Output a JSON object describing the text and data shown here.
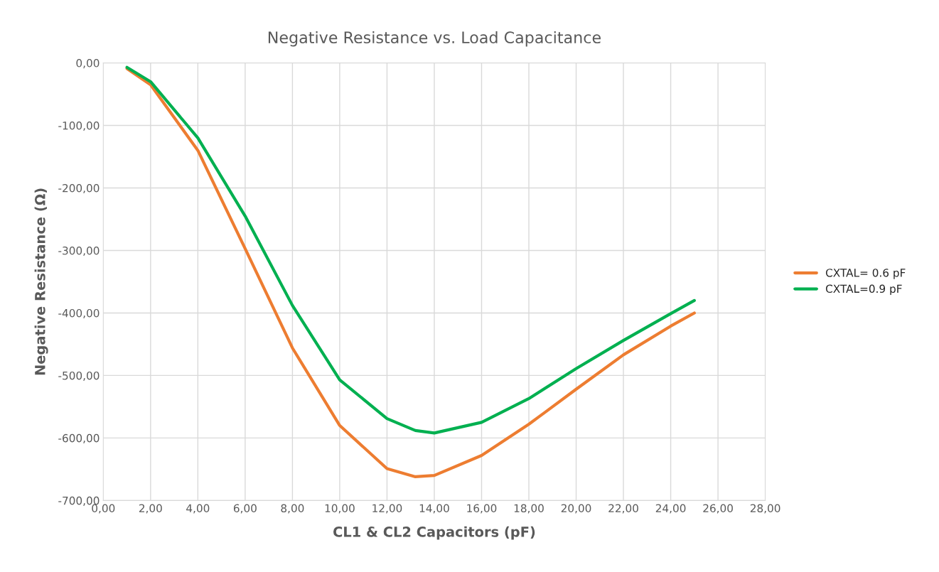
{
  "chart_data": {
    "type": "line",
    "title": "Negative Resistance vs. Load Capacitance",
    "xlabel": "CL1 & CL2 Capacitors (pF)",
    "ylabel": "Negative Resistance (Ω)",
    "x": [
      1,
      2,
      4,
      6,
      8,
      10,
      12,
      13.2,
      14,
      16,
      18,
      20,
      22,
      24,
      25
    ],
    "series": [
      {
        "name": "CXTAL= 0.6 pF",
        "color": "#ed7d31",
        "values": [
          -9,
          -35,
          -140,
          -297,
          -456,
          -580,
          -649,
          -662,
          -660,
          -628,
          -578,
          -522,
          -467,
          -421,
          -400
        ]
      },
      {
        "name": "CXTAL=0.9 pF",
        "color": "#00b050",
        "values": [
          -7,
          -30,
          -120,
          -245,
          -388,
          -507,
          -569,
          -588,
          -592,
          -575,
          -537,
          -489,
          -444,
          -401,
          -380
        ]
      }
    ],
    "xlim": [
      0,
      28
    ],
    "ylim": [
      -700,
      0
    ],
    "xticks": [
      {
        "value": 0,
        "label": "0,00"
      },
      {
        "value": 2,
        "label": "2,00"
      },
      {
        "value": 4,
        "label": "4,00"
      },
      {
        "value": 6,
        "label": "6,00"
      },
      {
        "value": 8,
        "label": "8,00"
      },
      {
        "value": 10,
        "label": "10,00"
      },
      {
        "value": 12,
        "label": "12,00"
      },
      {
        "value": 14,
        "label": "14,00"
      },
      {
        "value": 16,
        "label": "16,00"
      },
      {
        "value": 18,
        "label": "18,00"
      },
      {
        "value": 20,
        "label": "20,00"
      },
      {
        "value": 22,
        "label": "22,00"
      },
      {
        "value": 24,
        "label": "24,00"
      },
      {
        "value": 26,
        "label": "26,00"
      },
      {
        "value": 28,
        "label": "28,00"
      }
    ],
    "yticks": [
      {
        "value": 0,
        "label": "0,00"
      },
      {
        "value": -100,
        "label": "-100,00"
      },
      {
        "value": -200,
        "label": "-200,00"
      },
      {
        "value": -300,
        "label": "-300,00"
      },
      {
        "value": -400,
        "label": "-400,00"
      },
      {
        "value": -500,
        "label": "-500,00"
      },
      {
        "value": -600,
        "label": "-600,00"
      },
      {
        "value": -700,
        "label": "-700,00"
      }
    ],
    "grid": true,
    "legend": "right",
    "marker": "none",
    "line_style": "solid"
  }
}
